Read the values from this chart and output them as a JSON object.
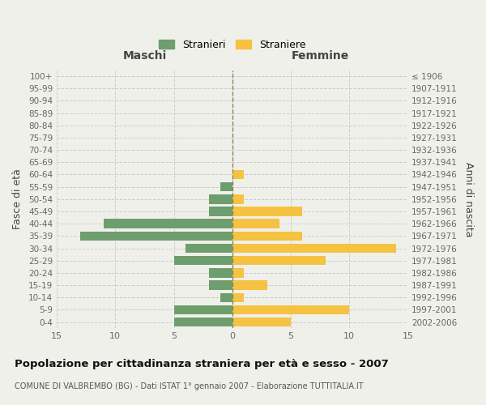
{
  "age_groups": [
    "0-4",
    "5-9",
    "10-14",
    "15-19",
    "20-24",
    "25-29",
    "30-34",
    "35-39",
    "40-44",
    "45-49",
    "50-54",
    "55-59",
    "60-64",
    "65-69",
    "70-74",
    "75-79",
    "80-84",
    "85-89",
    "90-94",
    "95-99",
    "100+"
  ],
  "birth_years": [
    "2002-2006",
    "1997-2001",
    "1992-1996",
    "1987-1991",
    "1982-1986",
    "1977-1981",
    "1972-1976",
    "1967-1971",
    "1962-1966",
    "1957-1961",
    "1952-1956",
    "1947-1951",
    "1942-1946",
    "1937-1941",
    "1932-1936",
    "1927-1931",
    "1922-1926",
    "1917-1921",
    "1912-1916",
    "1907-1911",
    "≤ 1906"
  ],
  "maschi": [
    5,
    5,
    1,
    2,
    2,
    5,
    4,
    13,
    11,
    2,
    2,
    1,
    0,
    0,
    0,
    0,
    0,
    0,
    0,
    0,
    0
  ],
  "femmine": [
    5,
    10,
    1,
    3,
    1,
    8,
    14,
    6,
    4,
    6,
    1,
    0,
    1,
    0,
    0,
    0,
    0,
    0,
    0,
    0,
    0
  ],
  "male_color": "#6e9e6e",
  "female_color": "#f5c242",
  "background_color": "#f0f0eb",
  "grid_color": "#cccccc",
  "title": "Popolazione per cittadinanza straniera per età e sesso - 2007",
  "subtitle": "COMUNE DI VALBREMBO (BG) - Dati ISTAT 1° gennaio 2007 - Elaborazione TUTTITALIA.IT",
  "xlabel_left": "Maschi",
  "xlabel_right": "Femmine",
  "ylabel_left": "Fasce di età",
  "ylabel_right": "Anni di nascita",
  "legend_male": "Stranieri",
  "legend_female": "Straniere",
  "xlim": 15
}
